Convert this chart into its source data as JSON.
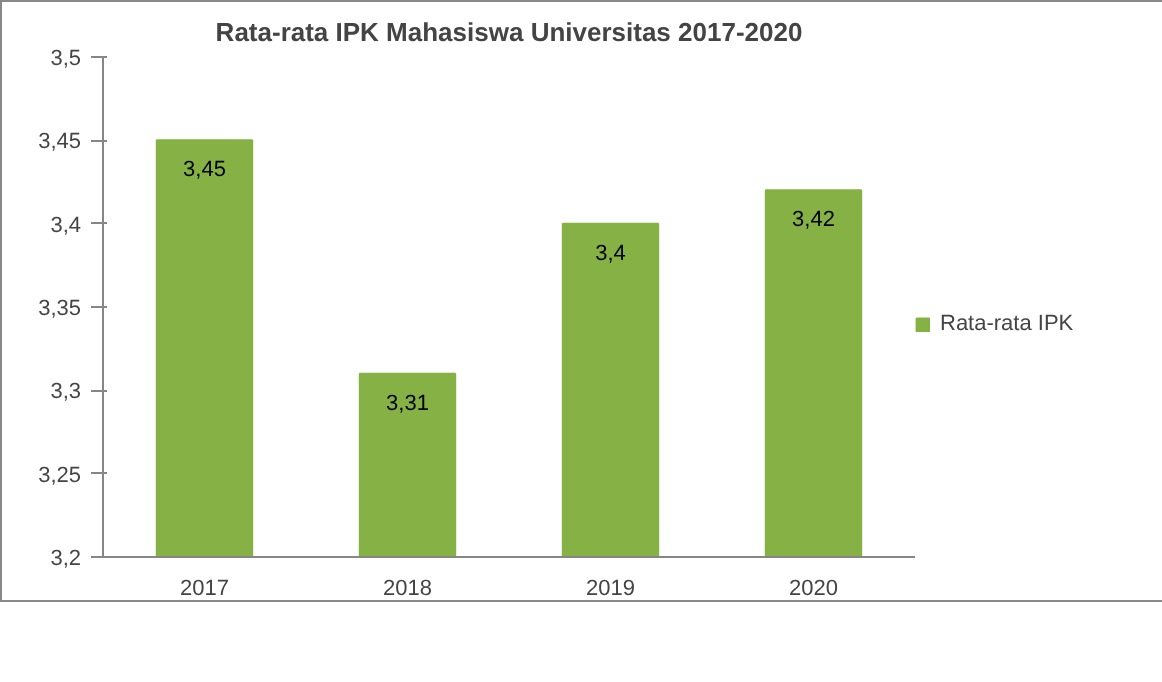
{
  "chart_data": {
    "type": "bar",
    "title": "Rata-rata IPK Mahasiswa Universitas 2017-2020",
    "categories": [
      "2017",
      "2018",
      "2019",
      "2020"
    ],
    "series": [
      {
        "name": "Rata-rata IPK",
        "color": "#85b145",
        "values": [
          3.45,
          3.31,
          3.4,
          3.42
        ]
      }
    ],
    "value_labels": [
      "3,45",
      "3,31",
      "3,4",
      "3,42"
    ],
    "ylim": [
      3.2,
      3.5
    ],
    "yticks": [
      {
        "value": 3.2,
        "label": "3,2"
      },
      {
        "value": 3.25,
        "label": "3,25"
      },
      {
        "value": 3.3,
        "label": "3,3"
      },
      {
        "value": 3.35,
        "label": "3,35"
      },
      {
        "value": 3.4,
        "label": "3,4"
      },
      {
        "value": 3.45,
        "label": "3,45"
      },
      {
        "value": 3.5,
        "label": "3,5"
      }
    ],
    "legend": "right"
  }
}
